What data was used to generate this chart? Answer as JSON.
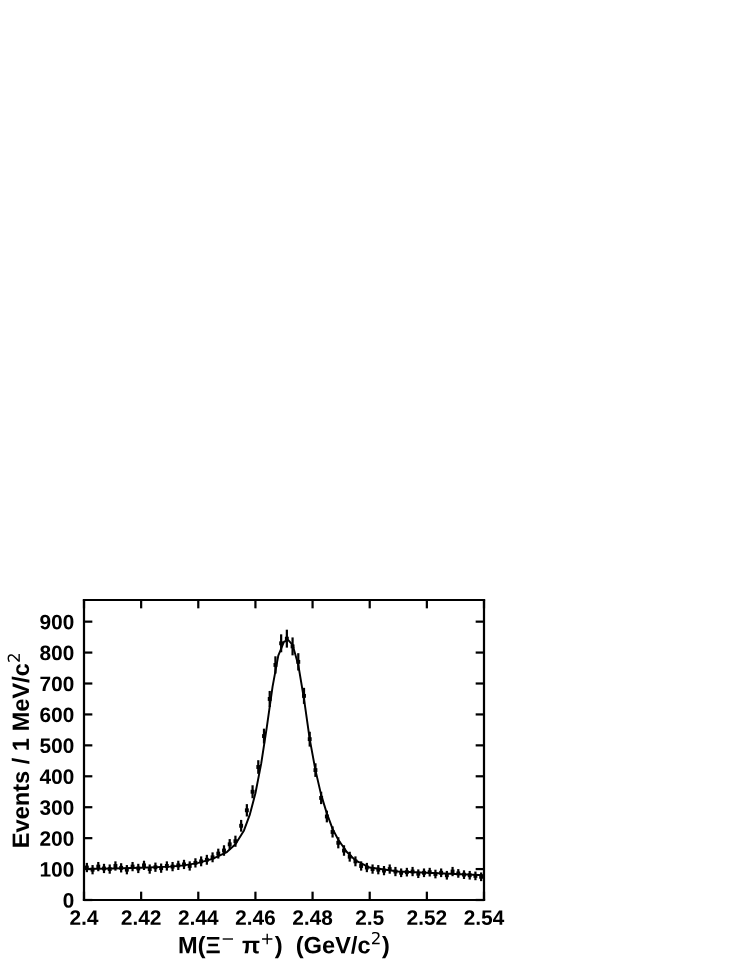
{
  "chart_data": {
    "type": "scatter",
    "xlabel": "M(Ξ$^{−}$ π$^{+}$)  (GeV/c$^{2}$)",
    "ylabel": "Events / 1 MeV/c$^{2}$",
    "xlim": [
      2.4,
      2.54
    ],
    "ylim": [
      0,
      970
    ],
    "xticks": [
      2.4,
      2.42,
      2.44,
      2.46,
      2.48,
      2.5,
      2.52,
      2.54
    ],
    "yticks": [
      0,
      100,
      200,
      300,
      400,
      500,
      600,
      700,
      800,
      900
    ],
    "grid": false,
    "legend": false,
    "series": [
      {
        "color": "#000000",
        "marker": "square",
        "x": [
          2.401,
          2.403,
          2.405,
          2.407,
          2.409,
          2.411,
          2.413,
          2.415,
          2.417,
          2.419,
          2.421,
          2.423,
          2.425,
          2.427,
          2.429,
          2.431,
          2.433,
          2.435,
          2.437,
          2.439,
          2.441,
          2.443,
          2.445,
          2.447,
          2.449,
          2.451,
          2.453,
          2.455,
          2.457,
          2.459,
          2.461,
          2.463,
          2.465,
          2.467,
          2.469,
          2.471,
          2.473,
          2.475,
          2.477,
          2.479,
          2.481,
          2.483,
          2.485,
          2.487,
          2.489,
          2.491,
          2.493,
          2.495,
          2.497,
          2.499,
          2.501,
          2.503,
          2.505,
          2.507,
          2.509,
          2.511,
          2.513,
          2.515,
          2.517,
          2.519,
          2.521,
          2.523,
          2.525,
          2.527,
          2.529,
          2.531,
          2.533,
          2.535,
          2.537,
          2.539
        ],
        "values": [
          105,
          98,
          108,
          102,
          100,
          110,
          104,
          98,
          108,
          102,
          112,
          100,
          106,
          103,
          110,
          108,
          112,
          115,
          110,
          120,
          125,
          130,
          138,
          150,
          160,
          180,
          190,
          240,
          290,
          350,
          430,
          530,
          650,
          760,
          830,
          845,
          820,
          770,
          660,
          520,
          420,
          330,
          270,
          220,
          185,
          160,
          140,
          125,
          110,
          105,
          100,
          98,
          95,
          100,
          92,
          88,
          90,
          92,
          85,
          88,
          90,
          84,
          88,
          80,
          92,
          86,
          82,
          80,
          78,
          75
        ],
        "errors": [
          15,
          15,
          15,
          15,
          15,
          15,
          15,
          15,
          15,
          15,
          15,
          15,
          15,
          15,
          15,
          15,
          15,
          15,
          15,
          15,
          16,
          16,
          16,
          16,
          17,
          17,
          18,
          19,
          20,
          21,
          22,
          24,
          26,
          28,
          29,
          29,
          29,
          28,
          26,
          24,
          22,
          20,
          19,
          18,
          18,
          17,
          16,
          16,
          15,
          15,
          15,
          15,
          15,
          15,
          15,
          14,
          14,
          15,
          14,
          14,
          14,
          14,
          14,
          14,
          15,
          14,
          14,
          14,
          14,
          14
        ]
      },
      {
        "type": "line",
        "color": "#000000",
        "marker": "none",
        "line_style": "solid",
        "x": [
          2.4,
          2.41,
          2.42,
          2.43,
          2.435,
          2.44,
          2.445,
          2.45,
          2.453,
          2.456,
          2.458,
          2.46,
          2.462,
          2.464,
          2.466,
          2.468,
          2.47,
          2.4715,
          2.473,
          2.475,
          2.477,
          2.479,
          2.481,
          2.483,
          2.485,
          2.487,
          2.489,
          2.492,
          2.495,
          2.5,
          2.51,
          2.52,
          2.53,
          2.54
        ],
        "values": [
          100,
          102,
          104,
          108,
          112,
          120,
          133,
          155,
          180,
          225,
          275,
          345,
          440,
          560,
          690,
          790,
          835,
          840,
          825,
          760,
          650,
          520,
          420,
          340,
          280,
          230,
          195,
          155,
          128,
          105,
          92,
          88,
          84,
          80
        ]
      }
    ]
  }
}
